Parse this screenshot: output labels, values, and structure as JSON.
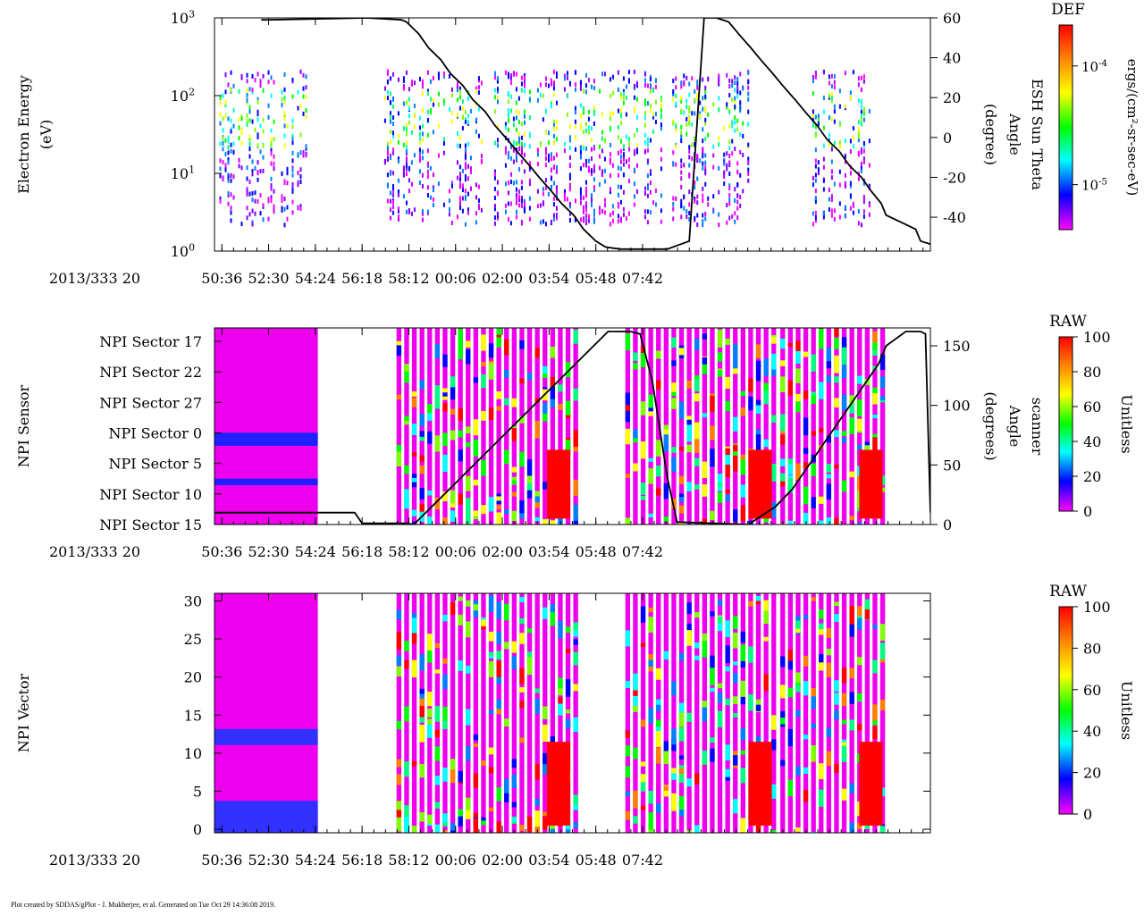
{
  "chart_data": [
    {
      "type": "heatmap",
      "panel": "electron-energy",
      "ylabel_lines": [
        "Electron Energy",
        "(eV)"
      ],
      "yscale": "log",
      "ylim": [
        1,
        1000
      ],
      "yticks": [
        {
          "value": 1,
          "base": "10",
          "exp": "0"
        },
        {
          "value": 10,
          "base": "10",
          "exp": "1"
        },
        {
          "value": 100,
          "base": "10",
          "exp": "2"
        },
        {
          "value": 1000,
          "base": "10",
          "exp": "3"
        }
      ],
      "date_label": "2013/333 20",
      "xticks": [
        "50:36",
        "52:30",
        "54:24",
        "56:18",
        "58:12",
        "00:06",
        "02:00",
        "03:54",
        "05:48",
        "07:42"
      ],
      "xlim_min": [
        50.3,
        79.4
      ],
      "data_blocks_min": [
        [
          50.5,
          54.4
        ],
        [
          57.2,
          68.6
        ],
        [
          68.8,
          72.1
        ],
        [
          74.6,
          76.9
        ]
      ],
      "right_axis": {
        "label_lines": [
          "ESH Sun Theta",
          "Angle",
          "(degree)"
        ],
        "ylim": [
          -57,
          60
        ],
        "ticks": [
          -40,
          -20,
          0,
          20,
          40,
          60
        ]
      },
      "line_series": {
        "name": "ESH Sun Theta",
        "x_min": [
          52.2,
          52.5,
          56.5,
          57.9,
          58.1,
          58.6,
          59.0,
          59.5,
          59.9,
          60.4,
          60.8,
          61.3,
          61.7,
          62.2,
          62.6,
          63.1,
          63.5,
          64.0,
          64.4,
          64.9,
          65.3,
          65.8,
          66.2,
          66.8,
          67.2,
          68.7,
          69.6,
          70.2,
          70.7,
          71.2,
          71.6,
          72.1,
          72.5,
          73.0,
          73.4,
          73.9,
          74.3,
          74.8,
          75.2,
          75.7,
          76.1,
          76.6,
          77.0,
          77.4,
          77.6,
          78.8,
          79.0,
          79.8
        ],
        "y_deg": [
          59,
          59,
          60,
          59,
          58,
          52,
          45,
          39,
          32,
          26,
          19,
          13,
          6,
          -1,
          -7,
          -14,
          -20,
          -27,
          -33,
          -39,
          -46,
          -52,
          -55,
          -56,
          -56,
          -56,
          -52,
          60,
          60,
          58,
          52,
          45,
          39,
          32,
          26,
          19,
          13,
          6,
          -1,
          -7,
          -14,
          -20,
          -27,
          -33,
          -39,
          -46,
          -52,
          -55
        ]
      }
    },
    {
      "type": "heatmap",
      "panel": "npi-sensor",
      "ylabel": "NPI Sensor",
      "ycategories": [
        "NPI Sector 17",
        "NPI Sector 22",
        "NPI Sector 27",
        "NPI Sector 0",
        "NPI Sector 5",
        "NPI Sector 10",
        "NPI Sector 15"
      ],
      "date_label": "2013/333 20",
      "xticks": [
        "50:36",
        "52:30",
        "54:24",
        "56:18",
        "58:12",
        "00:06",
        "02:00",
        "03:54",
        "05:48",
        "07:42"
      ],
      "xlim_min": [
        50.3,
        79.4
      ],
      "data_blocks_min": [
        [
          50.3,
          54.5
        ],
        [
          57.7,
          64.9
        ],
        [
          67.0,
          73.1
        ],
        [
          73.3,
          77.6
        ]
      ],
      "right_axis": {
        "label_lines": [
          "scanner",
          "Angle",
          "(degrees)"
        ],
        "ylim": [
          0,
          165
        ],
        "ticks": [
          0,
          50,
          100,
          150
        ]
      },
      "line_series": {
        "name": "scanner angle",
        "x_min": [
          50.3,
          56.0,
          56.3,
          58.1,
          58.4,
          66.3,
          67.2,
          67.6,
          68.1,
          68.7,
          69.1,
          72.0,
          73.1,
          73.8,
          74.3,
          74.8,
          75.3,
          75.8,
          76.3,
          76.8,
          77.3,
          77.6,
          78.4,
          79.0,
          79.2,
          79.4
        ],
        "y_deg": [
          10,
          10,
          1,
          1,
          0,
          162,
          162,
          160,
          120,
          40,
          2,
          0,
          15,
          30,
          45,
          60,
          75,
          90,
          105,
          120,
          135,
          150,
          162,
          162,
          160,
          10
        ]
      }
    },
    {
      "type": "heatmap",
      "panel": "npi-vector",
      "ylabel": "NPI Vector",
      "ylim": [
        0,
        31
      ],
      "yticks": [
        "0",
        "5",
        "10",
        "15",
        "20",
        "25",
        "30"
      ],
      "date_label": "2013/333 20",
      "xticks": [
        "50:36",
        "52:30",
        "54:24",
        "56:18",
        "58:12",
        "00:06",
        "02:00",
        "03:54",
        "05:48",
        "07:42"
      ],
      "xlim_min": [
        50.3,
        79.4
      ],
      "data_blocks_min": [
        [
          50.3,
          54.5
        ],
        [
          57.7,
          64.9
        ],
        [
          67.0,
          73.1
        ],
        [
          73.3,
          77.6
        ]
      ]
    }
  ],
  "colorbars": [
    {
      "title": "DEF",
      "unit_label": "ergs/(cm²-sr-sec-eV)",
      "scale": "log",
      "ticks": [
        {
          "base": "10",
          "exp": "-5"
        },
        {
          "base": "10",
          "exp": "-4"
        }
      ]
    },
    {
      "title": "RAW",
      "unit_label": "Unitless",
      "scale": "linear",
      "ticks": [
        "0",
        "20",
        "40",
        "60",
        "80",
        "100"
      ]
    },
    {
      "title": "RAW",
      "unit_label": "Unitless",
      "scale": "linear",
      "ticks": [
        "0",
        "20",
        "40",
        "60",
        "80",
        "100"
      ]
    }
  ],
  "footer": {
    "text": "Plot created by SDDAS/gPlot - J. Mukherjee, et al.  Generated on Tue Oct 29 14:36:08 2019."
  }
}
